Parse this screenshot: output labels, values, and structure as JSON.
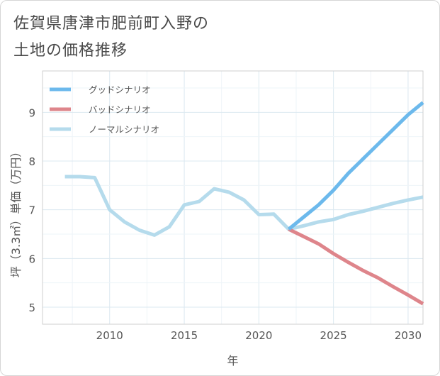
{
  "title": {
    "line1": "佐賀県唐津市肥前町入野の",
    "line2": "土地の価格推移"
  },
  "chart_data": {
    "type": "line",
    "xlabel": "年",
    "ylabel": "坪（3.3㎡）単価（万円）",
    "xlim": [
      2005.5,
      2031
    ],
    "ylim": [
      4.65,
      9.85
    ],
    "xticks": [
      2010,
      2015,
      2020,
      2025,
      2030
    ],
    "yticks": [
      5,
      6,
      7,
      8,
      9
    ],
    "grid": true,
    "legend_position": "top-left",
    "series": [
      {
        "name": "グッドシナリオ",
        "color": "#6cb9ec",
        "points": [
          [
            2022,
            6.6
          ],
          [
            2023,
            6.85
          ],
          [
            2024,
            7.1
          ],
          [
            2025,
            7.4
          ],
          [
            2026,
            7.75
          ],
          [
            2027,
            8.05
          ],
          [
            2028,
            8.35
          ],
          [
            2029,
            8.65
          ],
          [
            2030,
            8.95
          ],
          [
            2031,
            9.2
          ]
        ]
      },
      {
        "name": "バッドシナリオ",
        "color": "#de858b",
        "points": [
          [
            2022,
            6.6
          ],
          [
            2023,
            6.45
          ],
          [
            2024,
            6.3
          ],
          [
            2025,
            6.1
          ],
          [
            2026,
            5.92
          ],
          [
            2027,
            5.75
          ],
          [
            2028,
            5.6
          ],
          [
            2029,
            5.42
          ],
          [
            2030,
            5.25
          ],
          [
            2031,
            5.07
          ]
        ]
      },
      {
        "name": "ノーマルシナリオ",
        "color": "#b5dbec",
        "points": [
          [
            2007,
            7.68
          ],
          [
            2008,
            7.68
          ],
          [
            2009,
            7.66
          ],
          [
            2010,
            7.0
          ],
          [
            2011,
            6.75
          ],
          [
            2012,
            6.58
          ],
          [
            2013,
            6.48
          ],
          [
            2014,
            6.65
          ],
          [
            2015,
            7.1
          ],
          [
            2016,
            7.17
          ],
          [
            2017,
            7.43
          ],
          [
            2018,
            7.36
          ],
          [
            2019,
            7.2
          ],
          [
            2020,
            6.9
          ],
          [
            2021,
            6.91
          ],
          [
            2022,
            6.6
          ],
          [
            2023,
            6.67
          ],
          [
            2024,
            6.75
          ],
          [
            2025,
            6.8
          ],
          [
            2026,
            6.9
          ],
          [
            2027,
            6.97
          ],
          [
            2028,
            7.05
          ],
          [
            2029,
            7.13
          ],
          [
            2030,
            7.2
          ],
          [
            2031,
            7.26
          ]
        ]
      }
    ]
  }
}
